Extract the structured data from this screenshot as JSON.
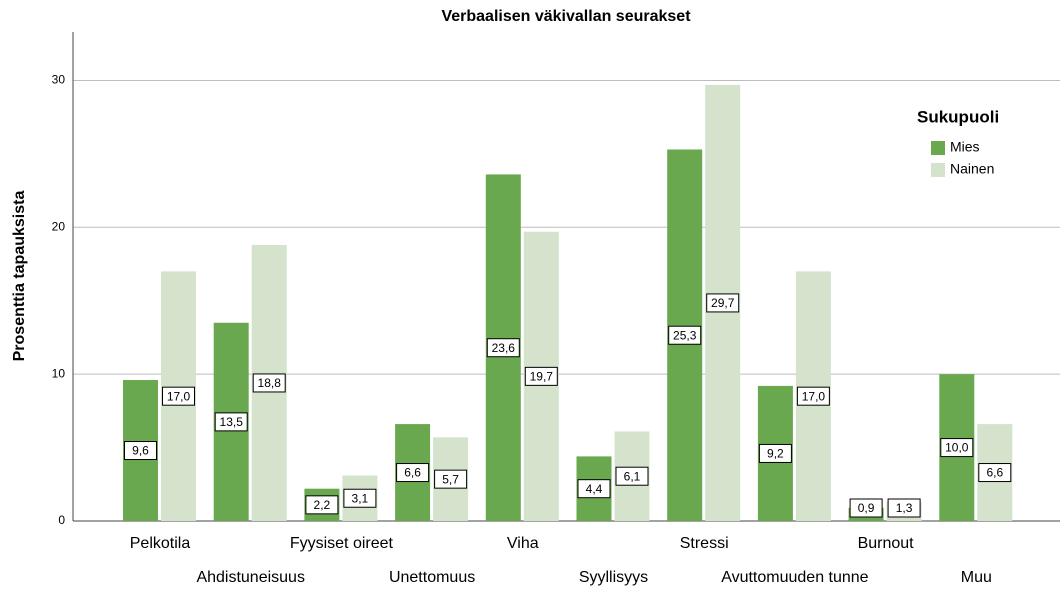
{
  "chart_data": {
    "type": "bar",
    "title": "Verbaalisen väkivallan seurakset",
    "y_label": "Prosenttia tapauksista",
    "categories": [
      "Pelkotila",
      "Ahdistuneisuus",
      "Fyysiset oireet",
      "Unettomuus",
      "Viha",
      "Syyllisyys",
      "Stressi",
      "Avuttomuuden tunne",
      "Burnout",
      "Muu"
    ],
    "legend_title": "Sukupuoli",
    "legend": "upper right",
    "series": [
      {
        "name": "Mies",
        "color": "#6aa84f",
        "values": [
          9.6,
          13.5,
          2.2,
          6.6,
          23.6,
          4.4,
          25.3,
          9.2,
          0.9,
          10.0
        ],
        "value_labels": [
          "9,6",
          "13,5",
          "2,2",
          "6,6",
          "23,6",
          "4,4",
          "25,3",
          "9,2",
          "0,9",
          "10,0"
        ]
      },
      {
        "name": "Nainen",
        "color": "#d5e3cd",
        "values": [
          17.0,
          18.8,
          3.1,
          5.7,
          19.7,
          6.1,
          29.7,
          17.0,
          1.3,
          6.6
        ],
        "value_labels": [
          "17,0",
          "18,8",
          "3,1",
          "5,7",
          "19,7",
          "6,1",
          "29,7",
          "17,0",
          "1,3",
          "6,6"
        ]
      }
    ],
    "ylim": [
      0,
      33.3
    ],
    "yticks": [
      0,
      10,
      20,
      30
    ],
    "grid": true
  }
}
